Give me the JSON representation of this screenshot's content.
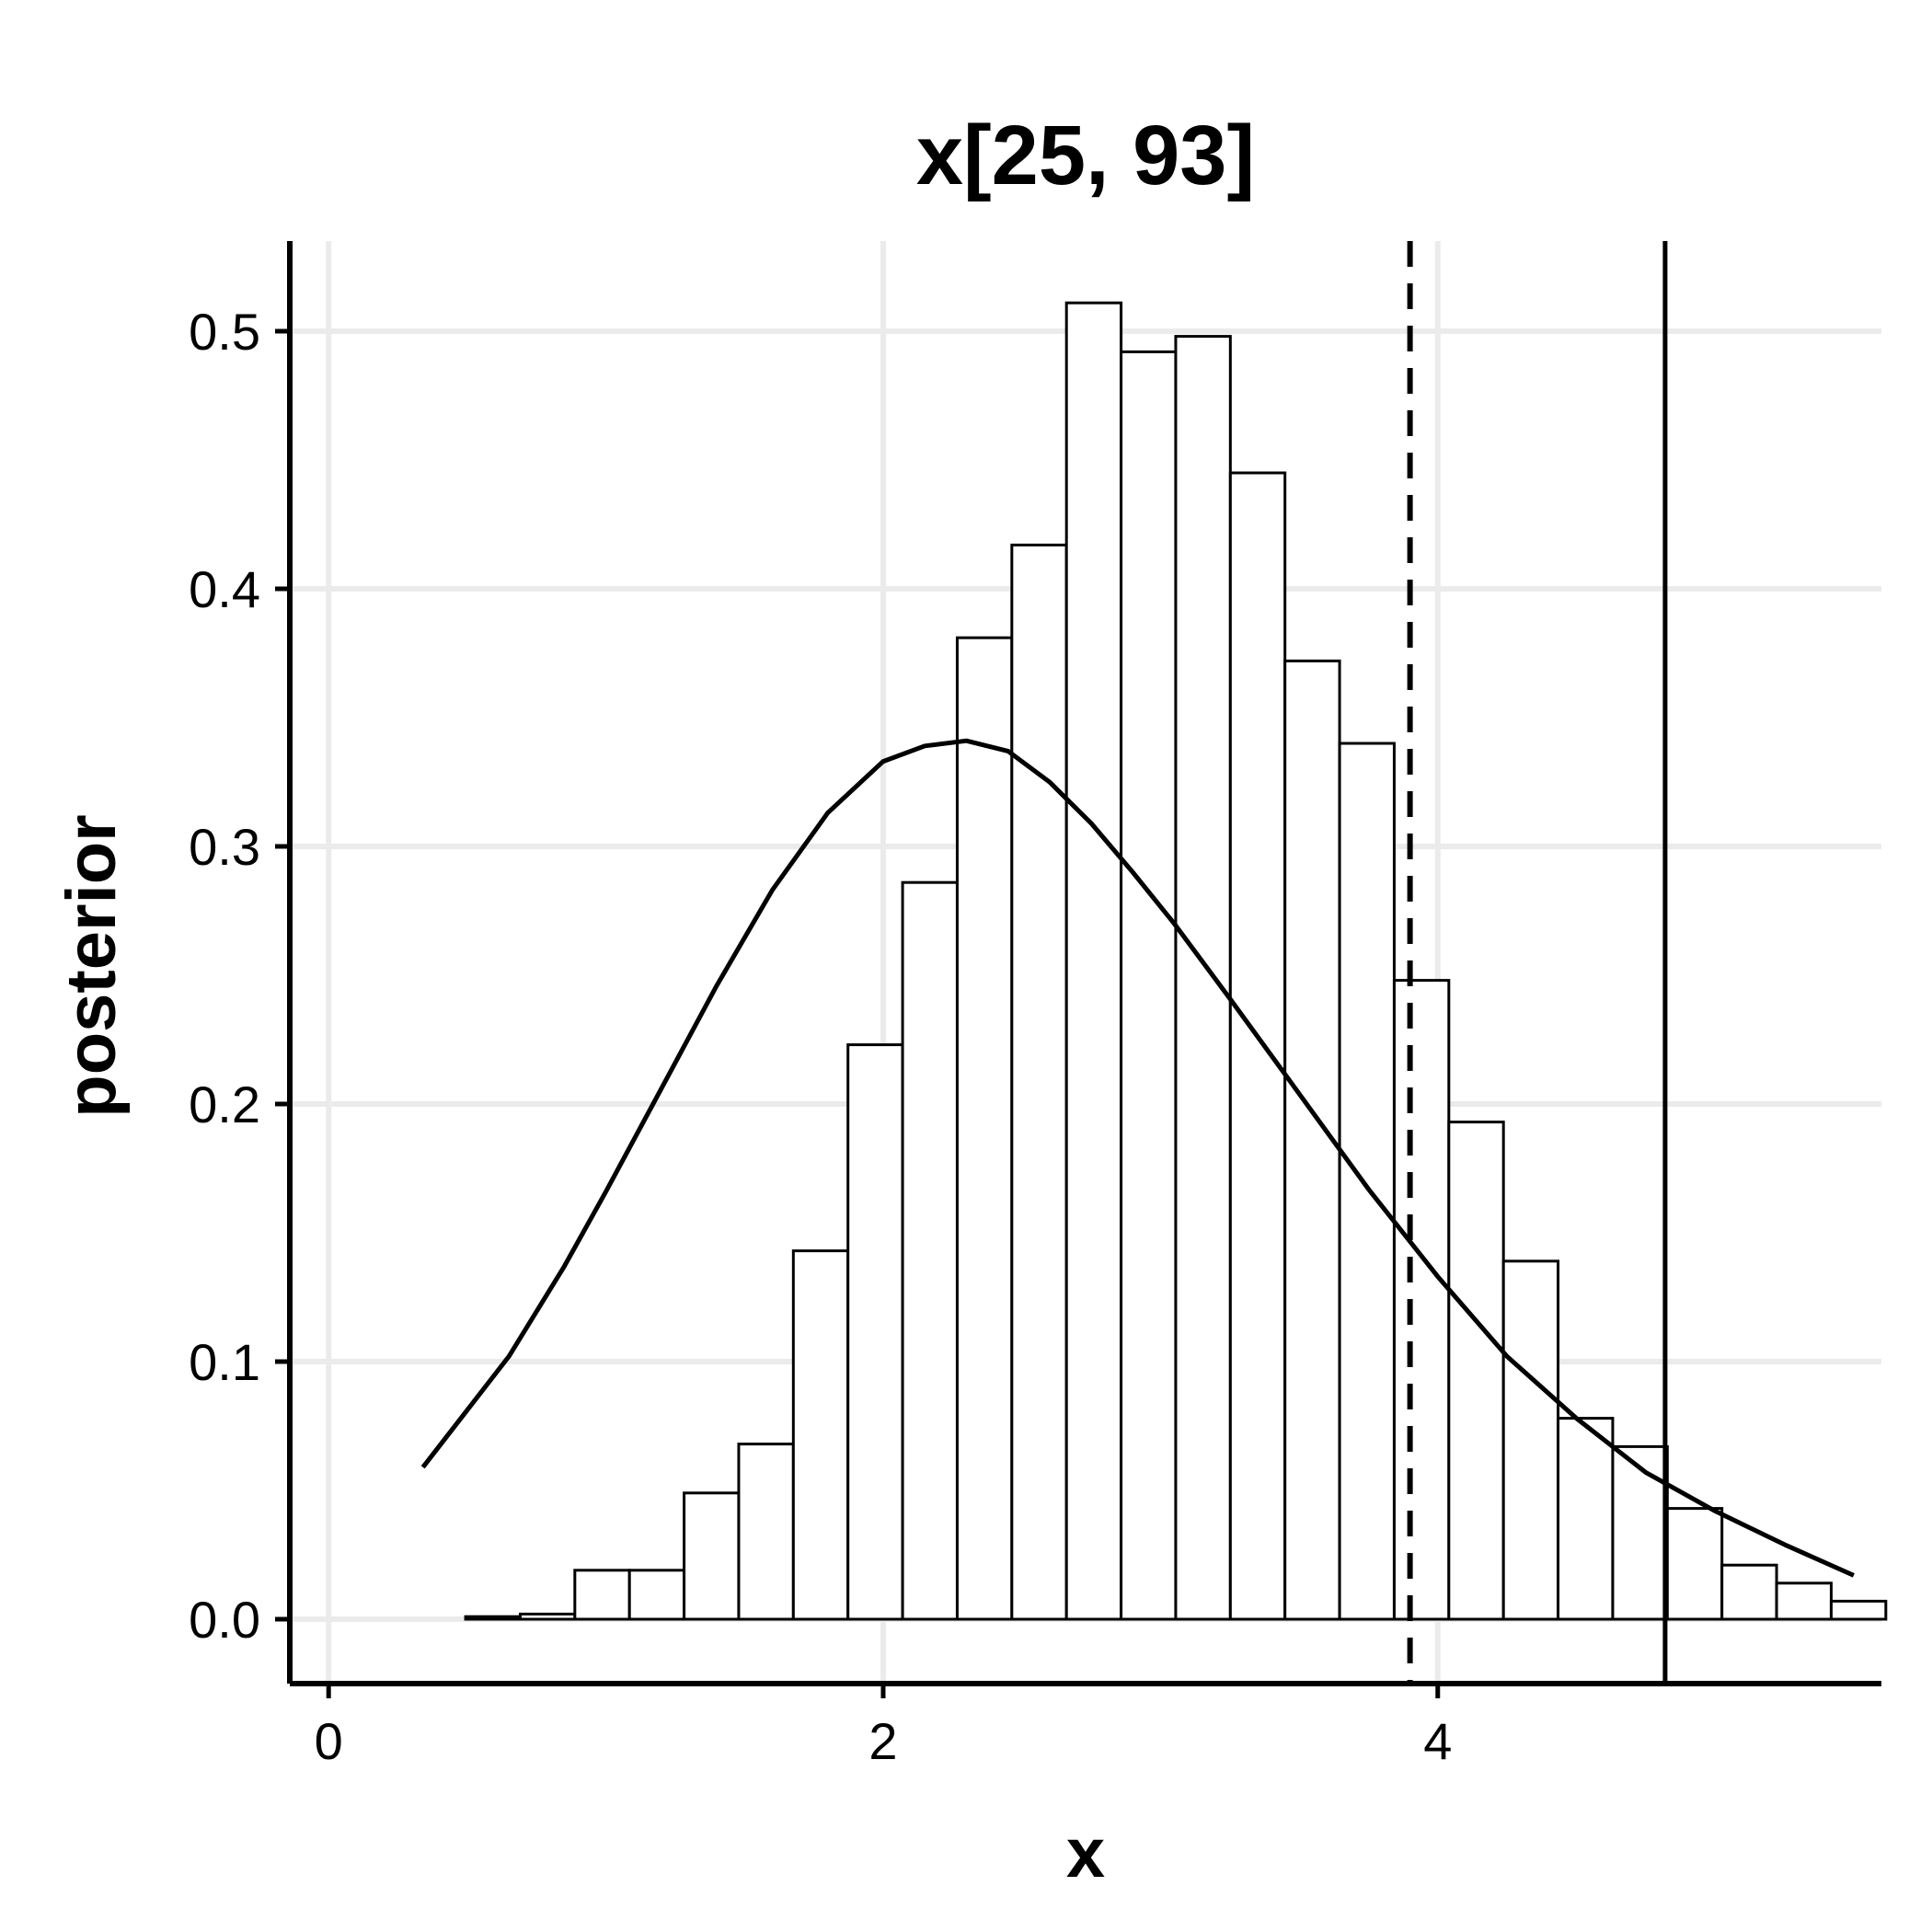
{
  "chart_data": {
    "type": "bar",
    "title": "x[25, 93]",
    "xlabel": "x",
    "ylabel": "posterior",
    "xlim": [
      -0.14,
      5.6
    ],
    "ylim": [
      -0.025,
      0.535
    ],
    "xticks": [
      0,
      2,
      4
    ],
    "yticks": [
      0.0,
      0.1,
      0.2,
      0.3,
      0.4,
      0.5
    ],
    "xtick_labels": [
      "0",
      "2",
      "4"
    ],
    "ytick_labels": [
      "0.0",
      "0.1",
      "0.2",
      "0.3",
      "0.4",
      "0.5"
    ],
    "grid": true,
    "histogram": {
      "bin_start": 0.1,
      "bin_width": 0.197,
      "values": [
        0.0,
        0.0,
        0.001,
        0.002,
        0.019,
        0.019,
        0.049,
        0.068,
        0.143,
        0.223,
        0.286,
        0.381,
        0.417,
        0.511,
        0.492,
        0.498,
        0.445,
        0.372,
        0.34,
        0.248,
        0.193,
        0.139,
        0.078,
        0.067,
        0.043,
        0.021,
        0.014,
        0.007
      ]
    },
    "density_curve": {
      "x": [
        0.34,
        0.65,
        0.85,
        1.0,
        1.2,
        1.4,
        1.6,
        1.8,
        2.0,
        2.15,
        2.3,
        2.45,
        2.6,
        2.75,
        2.9,
        3.05,
        3.25,
        3.5,
        3.75,
        4.0,
        4.25,
        4.5,
        4.75,
        5.0,
        5.25,
        5.5
      ],
      "y": [
        0.059,
        0.102,
        0.137,
        0.166,
        0.206,
        0.246,
        0.283,
        0.313,
        0.333,
        0.339,
        0.341,
        0.337,
        0.325,
        0.309,
        0.29,
        0.27,
        0.241,
        0.204,
        0.167,
        0.133,
        0.102,
        0.078,
        0.057,
        0.042,
        0.029,
        0.017
      ]
    },
    "reference_lines": [
      {
        "x": 3.9,
        "style": "dashed"
      },
      {
        "x": 4.82,
        "style": "solid"
      }
    ]
  }
}
